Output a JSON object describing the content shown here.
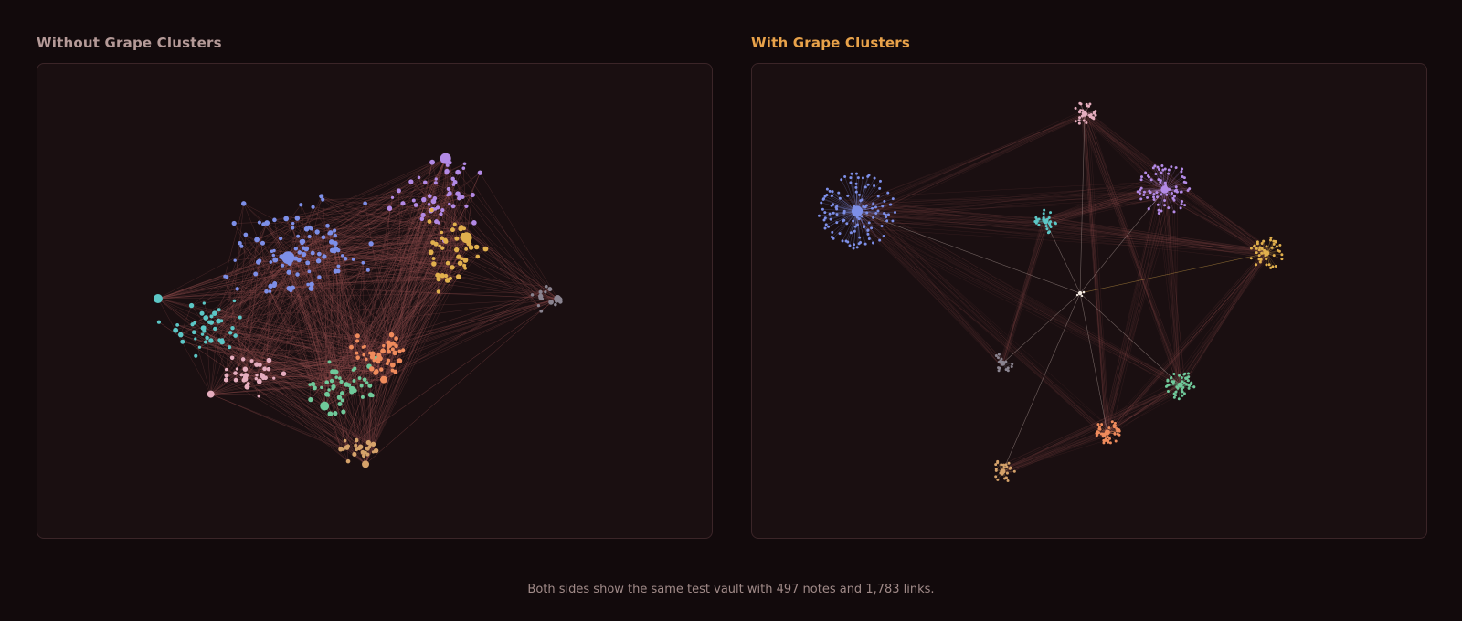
{
  "panels": {
    "left": {
      "title": "Without Grape Clusters"
    },
    "right": {
      "title": "With Grape Clusters"
    }
  },
  "caption": "Both sides show the same test vault with 497 notes and 1,783 links.",
  "colors": {
    "background": "#120a0c",
    "panel_bg": "#1a0f11",
    "panel_border": "#3b2528",
    "edge": "#8a4a4a",
    "left_title": "#b59a98",
    "right_title": "#e8a24a",
    "clusters": {
      "blue": "#7d8fe8",
      "purple": "#b38ae6",
      "yellow": "#e1b04d",
      "cyan": "#5cc7c6",
      "pink": "#e6aebf",
      "green": "#6fc99a",
      "orange": "#ef8b5c",
      "tan": "#d5a26a",
      "gray": "#8a8490"
    }
  }
}
